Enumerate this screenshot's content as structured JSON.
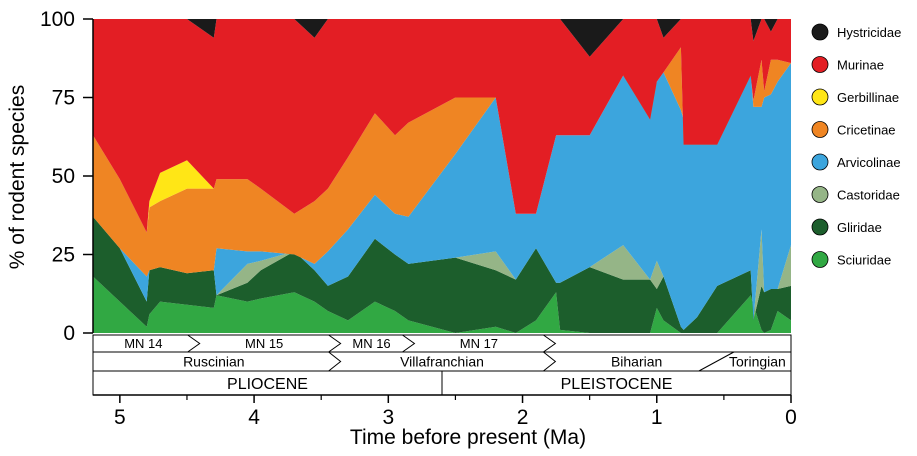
{
  "chart_data": {
    "type": "area",
    "stacked": true,
    "normalized_percent": true,
    "title": "",
    "xlabel": "Time before present (Ma)",
    "ylabel": "% of rodent species",
    "xlim": [
      5.2,
      0
    ],
    "ylim": [
      0,
      100
    ],
    "x_ticks": [
      5,
      4,
      3,
      2,
      1,
      0
    ],
    "y_ticks": [
      0,
      25,
      50,
      75,
      100
    ],
    "legend_position": "right",
    "series_bottom_to_top": [
      "Sciuridae",
      "Gliridae",
      "Castoridae",
      "Arvicolinae",
      "Cricetinae",
      "Gerbillinae",
      "Murinae",
      "Hystricidae"
    ],
    "legend_order": [
      "Hystricidae",
      "Murinae",
      "Gerbillinae",
      "Cricetinae",
      "Arvicolinae",
      "Castoridae",
      "Gliridae",
      "Sciuridae"
    ],
    "colors": {
      "Hystricidae": "#1a1a1a",
      "Murinae": "#e31e24",
      "Gerbillinae": "#ffe616",
      "Cricetinae": "#ef8523",
      "Arvicolinae": "#3ca5dd",
      "Castoridae": "#95b587",
      "Gliridae": "#1c5e2c",
      "Sciuridae": "#31a843"
    },
    "x": [
      5.2,
      5.0,
      4.8,
      4.78,
      4.7,
      4.5,
      4.3,
      4.28,
      4.05,
      3.95,
      3.7,
      3.55,
      3.45,
      3.3,
      3.1,
      2.95,
      2.85,
      2.5,
      2.2,
      2.05,
      1.9,
      1.75,
      1.72,
      1.5,
      1.25,
      1.05,
      1.0,
      0.95,
      0.82,
      0.8,
      0.7,
      0.55,
      0.3,
      0.28,
      0.22,
      0.2,
      0.15,
      0.1,
      0.0
    ],
    "boundaries": [
      [
        18,
        10,
        2,
        6,
        10,
        9,
        8,
        12,
        10,
        11,
        13,
        10,
        7,
        4,
        10,
        7,
        4,
        0,
        2,
        0,
        4,
        13,
        1,
        0,
        0,
        0,
        8,
        4,
        0,
        0,
        0,
        0,
        12,
        9,
        1,
        0,
        1,
        7,
        4
      ],
      [
        37,
        27,
        10,
        20,
        21,
        19,
        20,
        12,
        16,
        20,
        26,
        20,
        15,
        18,
        30,
        25,
        22,
        24,
        20,
        17,
        27,
        16,
        16,
        21,
        17,
        17,
        14,
        18,
        2,
        1,
        5,
        15,
        20,
        4,
        15,
        13,
        14,
        14,
        15
      ],
      [
        37,
        27,
        10,
        20,
        21,
        19,
        20,
        12,
        22,
        23,
        26,
        20,
        15,
        18,
        30,
        25,
        22,
        24,
        26,
        17,
        27,
        16,
        16,
        21,
        28,
        17,
        23,
        18,
        2,
        1,
        5,
        15,
        20,
        4,
        33,
        13,
        14,
        14,
        28
      ],
      [
        37,
        27,
        18,
        20,
        21,
        19,
        20,
        27,
        26,
        26,
        25,
        22,
        26,
        33,
        44,
        38,
        37,
        57,
        75,
        38,
        38,
        63,
        63,
        63,
        82,
        72,
        80,
        83,
        71,
        68,
        71,
        73,
        83,
        72,
        72,
        75,
        76,
        80,
        86
      ],
      [
        63,
        49,
        32,
        40,
        42,
        46,
        46,
        49,
        49,
        46,
        38,
        42,
        46,
        56,
        70,
        63,
        67,
        75,
        75,
        38,
        38,
        63,
        63,
        63,
        82,
        68,
        80,
        83,
        91,
        60,
        60,
        60,
        82,
        74,
        87,
        77,
        87,
        87,
        86
      ],
      [
        63,
        49,
        32,
        42,
        51,
        55,
        46,
        49,
        49,
        46,
        38,
        42,
        46,
        56,
        70,
        63,
        67,
        75,
        75,
        38,
        38,
        63,
        63,
        63,
        82,
        68,
        80,
        83,
        91,
        60,
        60,
        60,
        82,
        74,
        87,
        77,
        87,
        87,
        86
      ],
      [
        100,
        100,
        100,
        100,
        100,
        100,
        94,
        100,
        100,
        100,
        100,
        94,
        100,
        100,
        100,
        100,
        100,
        100,
        100,
        100,
        100,
        100,
        100,
        88,
        100,
        100,
        100,
        94,
        100,
        100,
        100,
        100,
        100,
        93,
        100,
        100,
        96,
        100,
        100
      ],
      [
        100,
        100,
        100,
        100,
        100,
        100,
        100,
        100,
        100,
        100,
        100,
        100,
        100,
        100,
        100,
        100,
        100,
        100,
        100,
        100,
        100,
        100,
        100,
        100,
        100,
        100,
        100,
        100,
        100,
        100,
        100,
        100,
        100,
        100,
        100,
        100,
        100,
        100,
        100
      ]
    ],
    "biozones": [
      {
        "label": "MN 14",
        "from": 5.2,
        "to": 4.45
      },
      {
        "label": "MN 15",
        "from": 4.45,
        "to": 3.4
      },
      {
        "label": "MN 16",
        "from": 3.4,
        "to": 2.85
      },
      {
        "label": "MN 17",
        "from": 2.85,
        "to": 1.8
      },
      {
        "label": "",
        "from": 1.8,
        "to": 0.0
      }
    ],
    "stages": [
      {
        "label": "Ruscinian",
        "from": 5.2,
        "to": 3.4
      },
      {
        "label": "Villafranchian",
        "from": 3.4,
        "to": 1.8
      },
      {
        "label": "Biharian",
        "from": 1.8,
        "to": 0.5
      },
      {
        "label": "Toringian",
        "from": 0.5,
        "to": 0.0
      }
    ],
    "epochs": [
      {
        "label": "PLIOCENE",
        "from": 5.2,
        "to": 2.6
      },
      {
        "label": "PLEISTOCENE",
        "from": 2.6,
        "to": 0.0
      }
    ]
  }
}
